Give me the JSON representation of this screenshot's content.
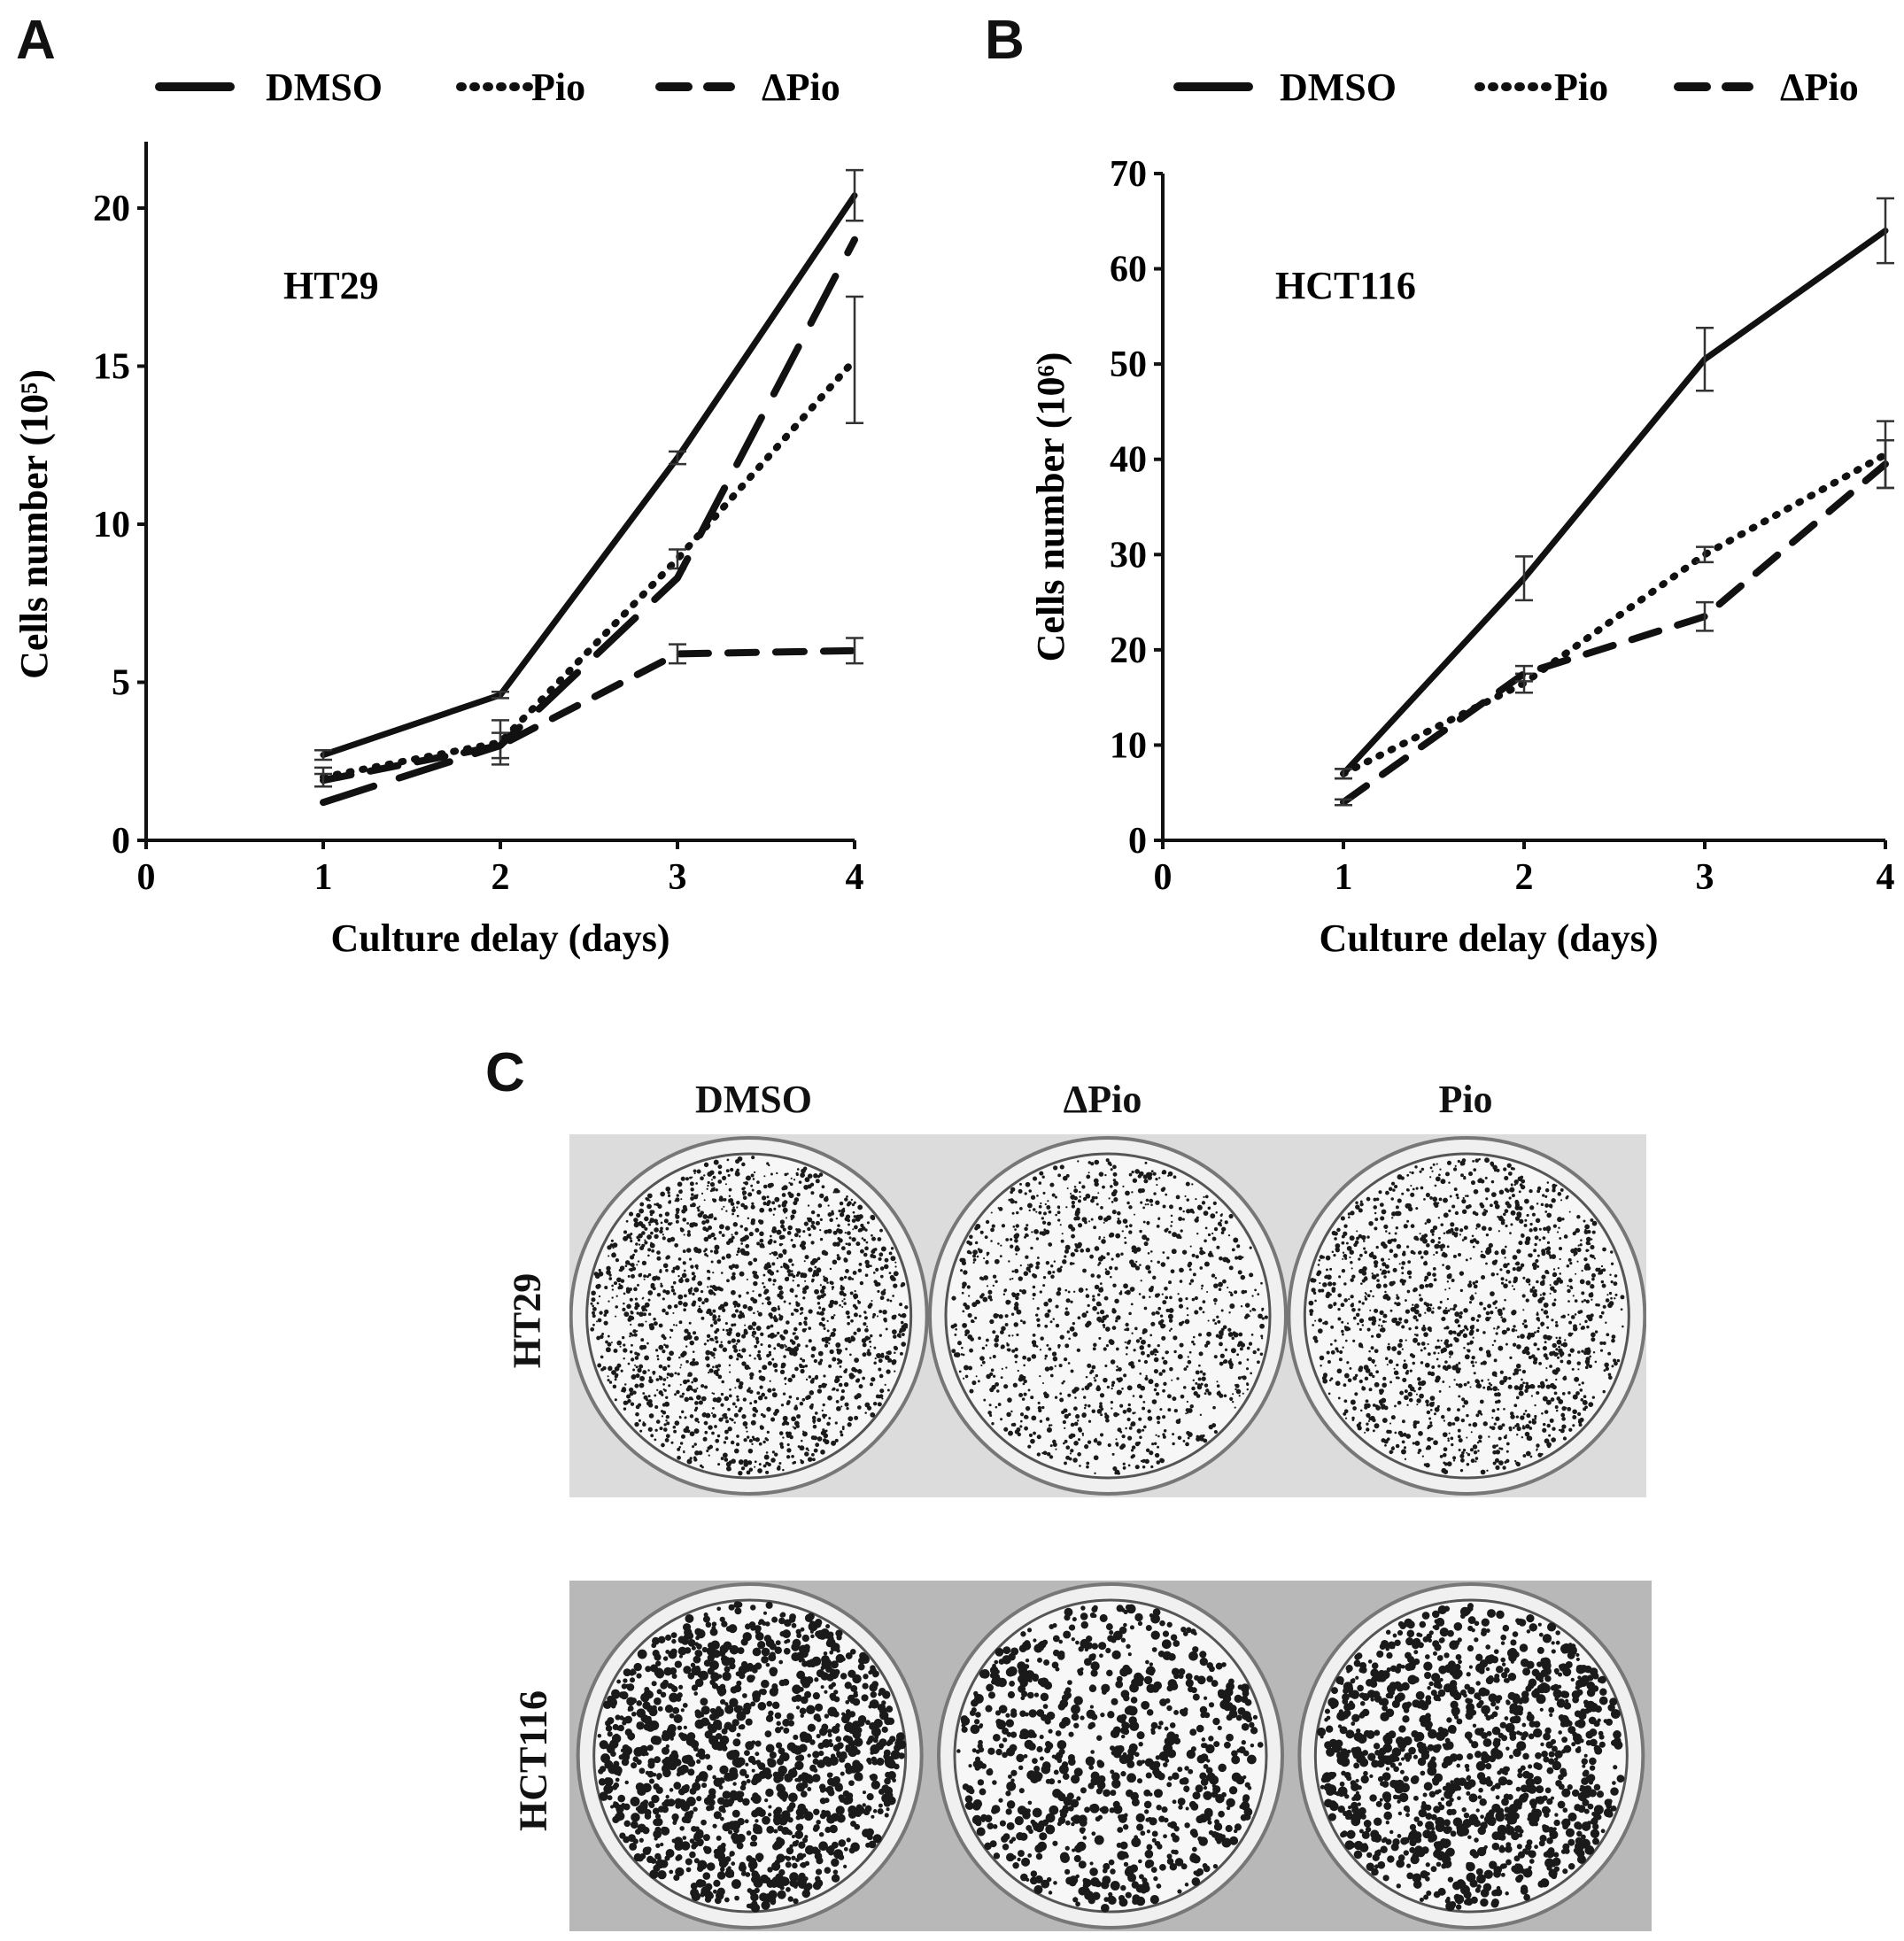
{
  "panels": {
    "a": "A",
    "b": "B",
    "c": "C"
  },
  "legend": [
    {
      "name": "DMSO",
      "style": "solid"
    },
    {
      "name": "Pio",
      "style": "dotted"
    },
    {
      "name": "ΔPio",
      "style": "dashed"
    }
  ],
  "chart_data": [
    {
      "type": "line",
      "panel": "A",
      "annotation": "HT29",
      "xlabel": "Culture delay (days)",
      "ylabel": "Cells number (10⁵)",
      "xlim": [
        0,
        4
      ],
      "ylim": [
        0,
        22
      ],
      "xticks": [
        0,
        1,
        2,
        3,
        4
      ],
      "yticks": [
        0,
        5,
        10,
        15,
        20
      ],
      "grid": false,
      "legend_placement": "top",
      "x": [
        1,
        2,
        3,
        4
      ],
      "series": [
        {
          "name": "DMSO",
          "style": "solid",
          "values": [
            2.7,
            4.6,
            12.1,
            20.4
          ],
          "errors": [
            0.15,
            0.1,
            0.2,
            0.8
          ]
        },
        {
          "name": "Pio",
          "style": "dotted",
          "values": [
            2.0,
            3.1,
            8.9,
            15.2
          ],
          "errors": [
            0.3,
            0.7,
            0.3,
            2.0
          ]
        },
        {
          "name": "ΔPio",
          "style": "dashed",
          "values": [
            1.9,
            3.0,
            5.9,
            6.0
          ],
          "errors": [
            0.2,
            0.4,
            0.3,
            0.4
          ]
        },
        {
          "style": "long-dashed",
          "values": [
            1.2,
            3.0,
            8.3,
            19.0
          ],
          "errors": [
            0,
            0,
            0,
            0
          ]
        }
      ]
    },
    {
      "type": "line",
      "panel": "B",
      "annotation": "HCT116",
      "xlabel": "Culture delay  (days)",
      "ylabel": "Cells number (10⁶)",
      "xlim": [
        0,
        4
      ],
      "ylim": [
        0,
        70
      ],
      "xticks": [
        0,
        1,
        2,
        3,
        4
      ],
      "yticks": [
        0,
        10,
        20,
        30,
        40,
        50,
        60,
        70
      ],
      "grid": false,
      "legend_placement": "top",
      "x": [
        1,
        2,
        3,
        4
      ],
      "series": [
        {
          "name": "DMSO",
          "style": "solid",
          "values": [
            7,
            27.5,
            50.5,
            64
          ],
          "errors": [
            0.5,
            2.3,
            3.3,
            3.4
          ]
        },
        {
          "name": "Pio",
          "style": "dotted",
          "values": [
            7,
            16.5,
            30,
            40.5
          ],
          "errors": [
            0.5,
            1.0,
            0.8,
            3.5
          ]
        },
        {
          "name": "ΔPio",
          "style": "dashed",
          "values": [
            4,
            17.5,
            23.5,
            39.5
          ],
          "errors": [
            0.3,
            0.8,
            1.5,
            2.5
          ]
        }
      ]
    }
  ],
  "plates": {
    "columns": [
      "DMSO",
      "ΔPio",
      "Pio"
    ],
    "rows": [
      "HT29",
      "HCT116"
    ],
    "density": [
      [
        0.8,
        0.55,
        0.7
      ],
      [
        0.9,
        0.6,
        0.85
      ]
    ]
  }
}
